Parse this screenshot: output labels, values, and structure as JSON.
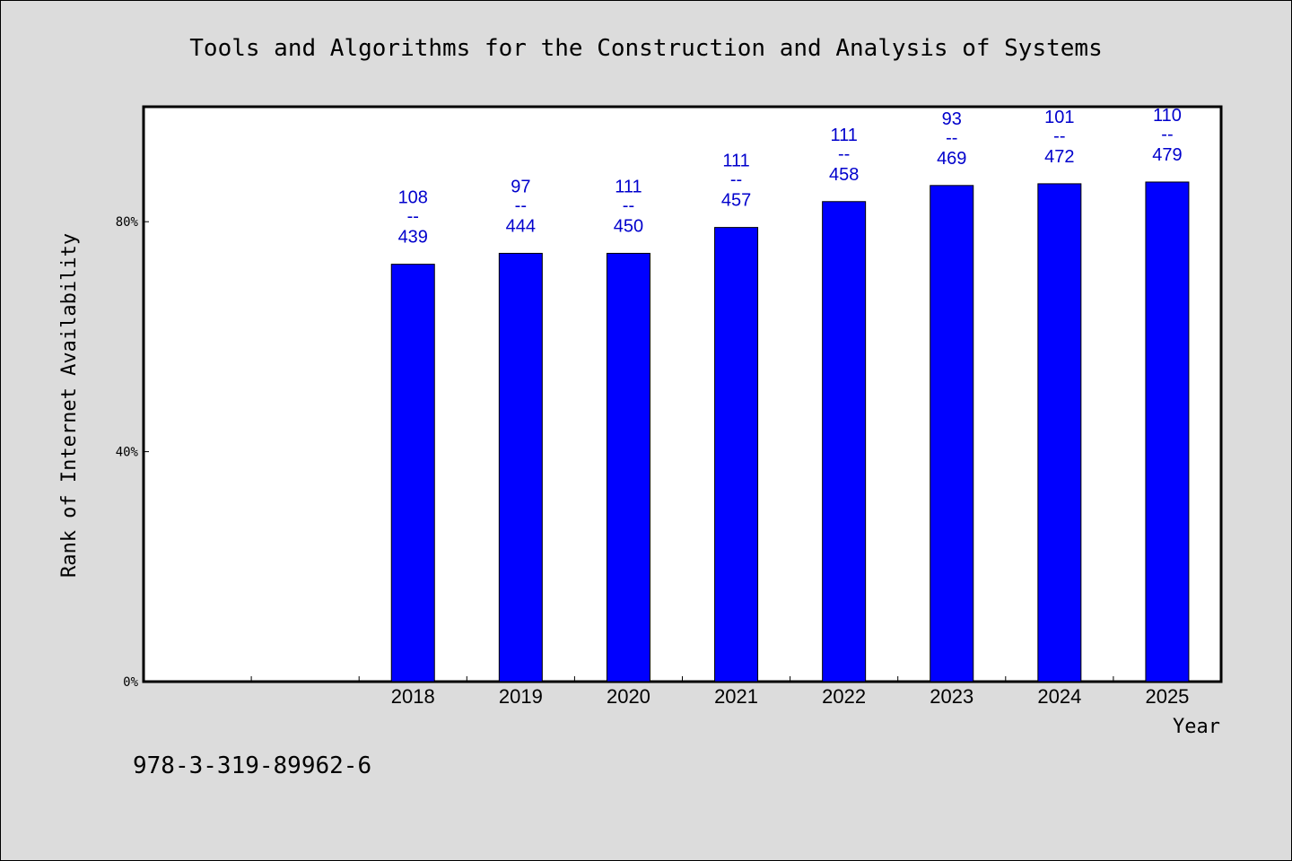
{
  "chart_data": {
    "type": "bar",
    "title": "Tools and Algorithms for the Construction and Analysis of Systems",
    "xlabel": "Year",
    "ylabel": "Rank of Internet Availability",
    "ylim": [
      0,
      100
    ],
    "yticks": [
      0,
      40,
      80
    ],
    "ytick_labels": [
      "0%",
      "40%",
      "80%"
    ],
    "categories": [
      "",
      "",
      "2018",
      "2019",
      "2020",
      "2021",
      "2022",
      "2023",
      "2024",
      "2025"
    ],
    "values": [
      null,
      null,
      72.6,
      74.5,
      74.5,
      79.0,
      83.5,
      86.3,
      86.6,
      86.9
    ],
    "data_labels": [
      null,
      null,
      {
        "top": "108",
        "sep": "--",
        "bottom": "439"
      },
      {
        "top": "97",
        "sep": "--",
        "bottom": "444"
      },
      {
        "top": "111",
        "sep": "--",
        "bottom": "450"
      },
      {
        "top": "111",
        "sep": "--",
        "bottom": "457"
      },
      {
        "top": "111",
        "sep": "--",
        "bottom": "458"
      },
      {
        "top": "93",
        "sep": "--",
        "bottom": "469"
      },
      {
        "top": "101",
        "sep": "--",
        "bottom": "472"
      },
      {
        "top": "110",
        "sep": "--",
        "bottom": "479"
      }
    ],
    "grid": false,
    "colors": {
      "bar": "#0000ff",
      "label": "#0000cc",
      "plot_background": "#ffffff",
      "page_background": "#dcdcdc"
    }
  },
  "footer": {
    "isbn": "978-3-319-89962-6"
  }
}
